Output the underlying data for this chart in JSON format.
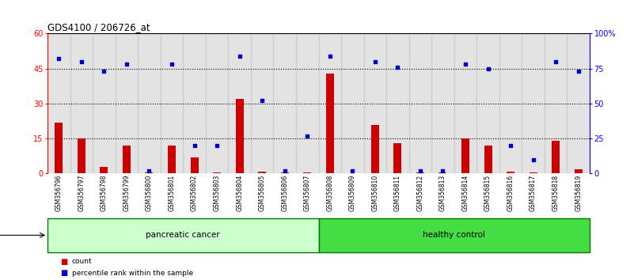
{
  "title": "GDS4100 / 206726_at",
  "samples": [
    "GSM356796",
    "GSM356797",
    "GSM356798",
    "GSM356799",
    "GSM356800",
    "GSM356801",
    "GSM356802",
    "GSM356803",
    "GSM356804",
    "GSM356805",
    "GSM356806",
    "GSM356807",
    "GSM356808",
    "GSM356809",
    "GSM356810",
    "GSM356811",
    "GSM356812",
    "GSM356813",
    "GSM356814",
    "GSM356815",
    "GSM356816",
    "GSM356817",
    "GSM356818",
    "GSM356819"
  ],
  "counts": [
    22,
    15,
    3,
    12,
    0.4,
    12,
    7,
    0.4,
    32,
    1,
    0.4,
    0.4,
    43,
    0.2,
    21,
    13,
    0.4,
    0.4,
    15,
    12,
    1,
    0.4,
    14,
    2
  ],
  "percentiles": [
    82,
    80,
    73,
    78,
    2,
    78,
    20,
    20,
    84,
    52,
    2,
    27,
    84,
    2,
    80,
    76,
    2,
    2,
    78,
    75,
    20,
    10,
    80,
    73
  ],
  "group_labels": [
    "pancreatic cancer",
    "healthy control"
  ],
  "group_ranges": [
    [
      0,
      11
    ],
    [
      12,
      23
    ]
  ],
  "bar_color": "#cc0000",
  "dot_color": "#0000cc",
  "pancreatic_cancer_bg": "#ccffcc",
  "healthy_control_bg": "#44dd44",
  "group_border_color": "#007700",
  "ylim_left": [
    0,
    60
  ],
  "ylim_right": [
    0,
    100
  ],
  "yticks_left": [
    0,
    15,
    30,
    45,
    60
  ],
  "ytick_labels_left": [
    "0",
    "15",
    "30",
    "45",
    "60"
  ],
  "yticks_right": [
    0,
    25,
    50,
    75,
    100
  ],
  "ytick_labels_right": [
    "0",
    "25",
    "50",
    "75",
    "100%"
  ],
  "bg_color": "#ffffff",
  "bar_bg_color": "#cccccc",
  "legend_count_label": "count",
  "legend_percentile_label": "percentile rank within the sample"
}
